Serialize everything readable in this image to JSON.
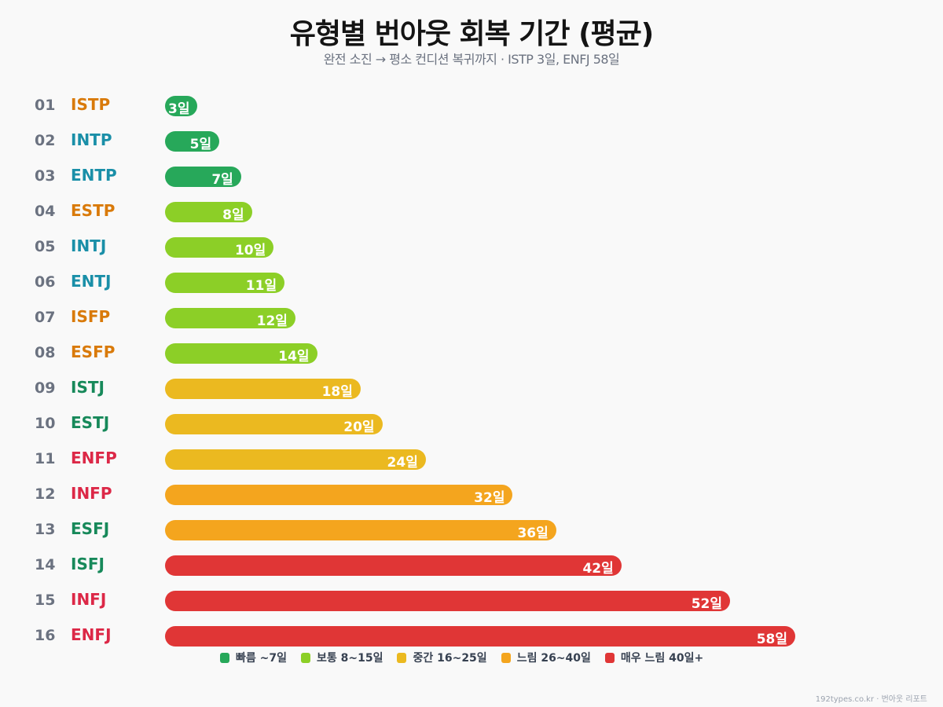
{
  "chart_data": {
    "type": "bar",
    "orientation": "horizontal",
    "title": "유형별 번아웃 회복 기간 (평균)",
    "subtitle": "완전 소진 → 평소 컨디션 복귀까지 · ISTP 3일, ENFJ 58일",
    "value_suffix": "일",
    "xlim": [
      0,
      58
    ],
    "grid": false,
    "legend_placement": "bottom",
    "categories": [
      "ISTP",
      "INTP",
      "ENTP",
      "ESTP",
      "INTJ",
      "ENTJ",
      "ISFP",
      "ESFP",
      "ISTJ",
      "ESTJ",
      "ENFP",
      "INFP",
      "ESFJ",
      "ISFJ",
      "INFJ",
      "ENFJ"
    ],
    "ranks": [
      "01",
      "02",
      "03",
      "04",
      "05",
      "06",
      "07",
      "08",
      "09",
      "10",
      "11",
      "12",
      "13",
      "14",
      "15",
      "16"
    ],
    "values": [
      3,
      5,
      7,
      8,
      10,
      11,
      12,
      14,
      18,
      20,
      24,
      32,
      36,
      42,
      52,
      58
    ],
    "type_colors": {
      "SP": "#d97a0a",
      "NT": "#1a8fa8",
      "SJ": "#17895a",
      "NF": "#dc2847"
    },
    "type_groups": [
      "SP",
      "NT",
      "NT",
      "SP",
      "NT",
      "NT",
      "SP",
      "SP",
      "SJ",
      "SJ",
      "NF",
      "NF",
      "SJ",
      "SJ",
      "NF",
      "NF"
    ],
    "legend": [
      {
        "label": "빠름 ~7일",
        "color": "#27a85a",
        "max": 7
      },
      {
        "label": "보통 8~15일",
        "color": "#8ccf27",
        "max": 15
      },
      {
        "label": "중간 16~25일",
        "color": "#ebb920",
        "max": 25
      },
      {
        "label": "느림 26~40일",
        "color": "#f4a51e",
        "max": 40
      },
      {
        "label": "매우 느림 40일+",
        "color": "#e03636",
        "max": 999
      }
    ]
  },
  "footer": "192types.co.kr · 번아웃 리포트"
}
